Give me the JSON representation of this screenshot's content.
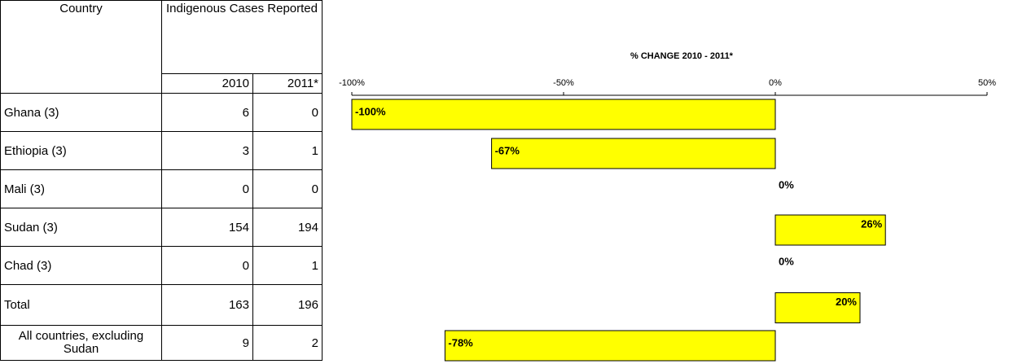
{
  "table": {
    "header_country": "Country",
    "header_cases": "Indigenous Cases Reported",
    "year_2010": "2010",
    "year_2011": "2011*",
    "rows": [
      {
        "country": "Ghana (3)",
        "v2010": "6",
        "v2011": "0"
      },
      {
        "country": "Ethiopia (3)",
        "v2010": "3",
        "v2011": "1"
      },
      {
        "country": "Mali (3)",
        "v2010": "0",
        "v2011": "0"
      },
      {
        "country": "Sudan (3)",
        "v2010": "154",
        "v2011": "194"
      },
      {
        "country": "Chad (3)",
        "v2010": "0",
        "v2011": "1"
      },
      {
        "country": "Total",
        "v2010": "163",
        "v2011": "196"
      },
      {
        "country": "All countries, excluding Sudan",
        "v2010": "9",
        "v2011": "2"
      }
    ]
  },
  "chart_data": {
    "type": "bar",
    "orientation": "horizontal",
    "title": "% CHANGE 2010 - 2011*",
    "xlim": [
      -100,
      50
    ],
    "ticks": [
      "-100%",
      "-50%",
      "0%",
      "50%"
    ],
    "tick_values": [
      -100,
      -50,
      0,
      50
    ],
    "categories": [
      "Ghana (3)",
      "Ethiopia (3)",
      "Mali (3)",
      "Sudan (3)",
      "Chad (3)",
      "Total",
      "All countries, excluding Sudan"
    ],
    "values": [
      -100,
      -67,
      0,
      26,
      0,
      20,
      -78
    ],
    "labels": [
      "-100%",
      "-67%",
      "0%",
      "26%",
      "0%",
      "20%",
      "-78%"
    ],
    "bar_color": "#ffff00",
    "grid": false
  }
}
